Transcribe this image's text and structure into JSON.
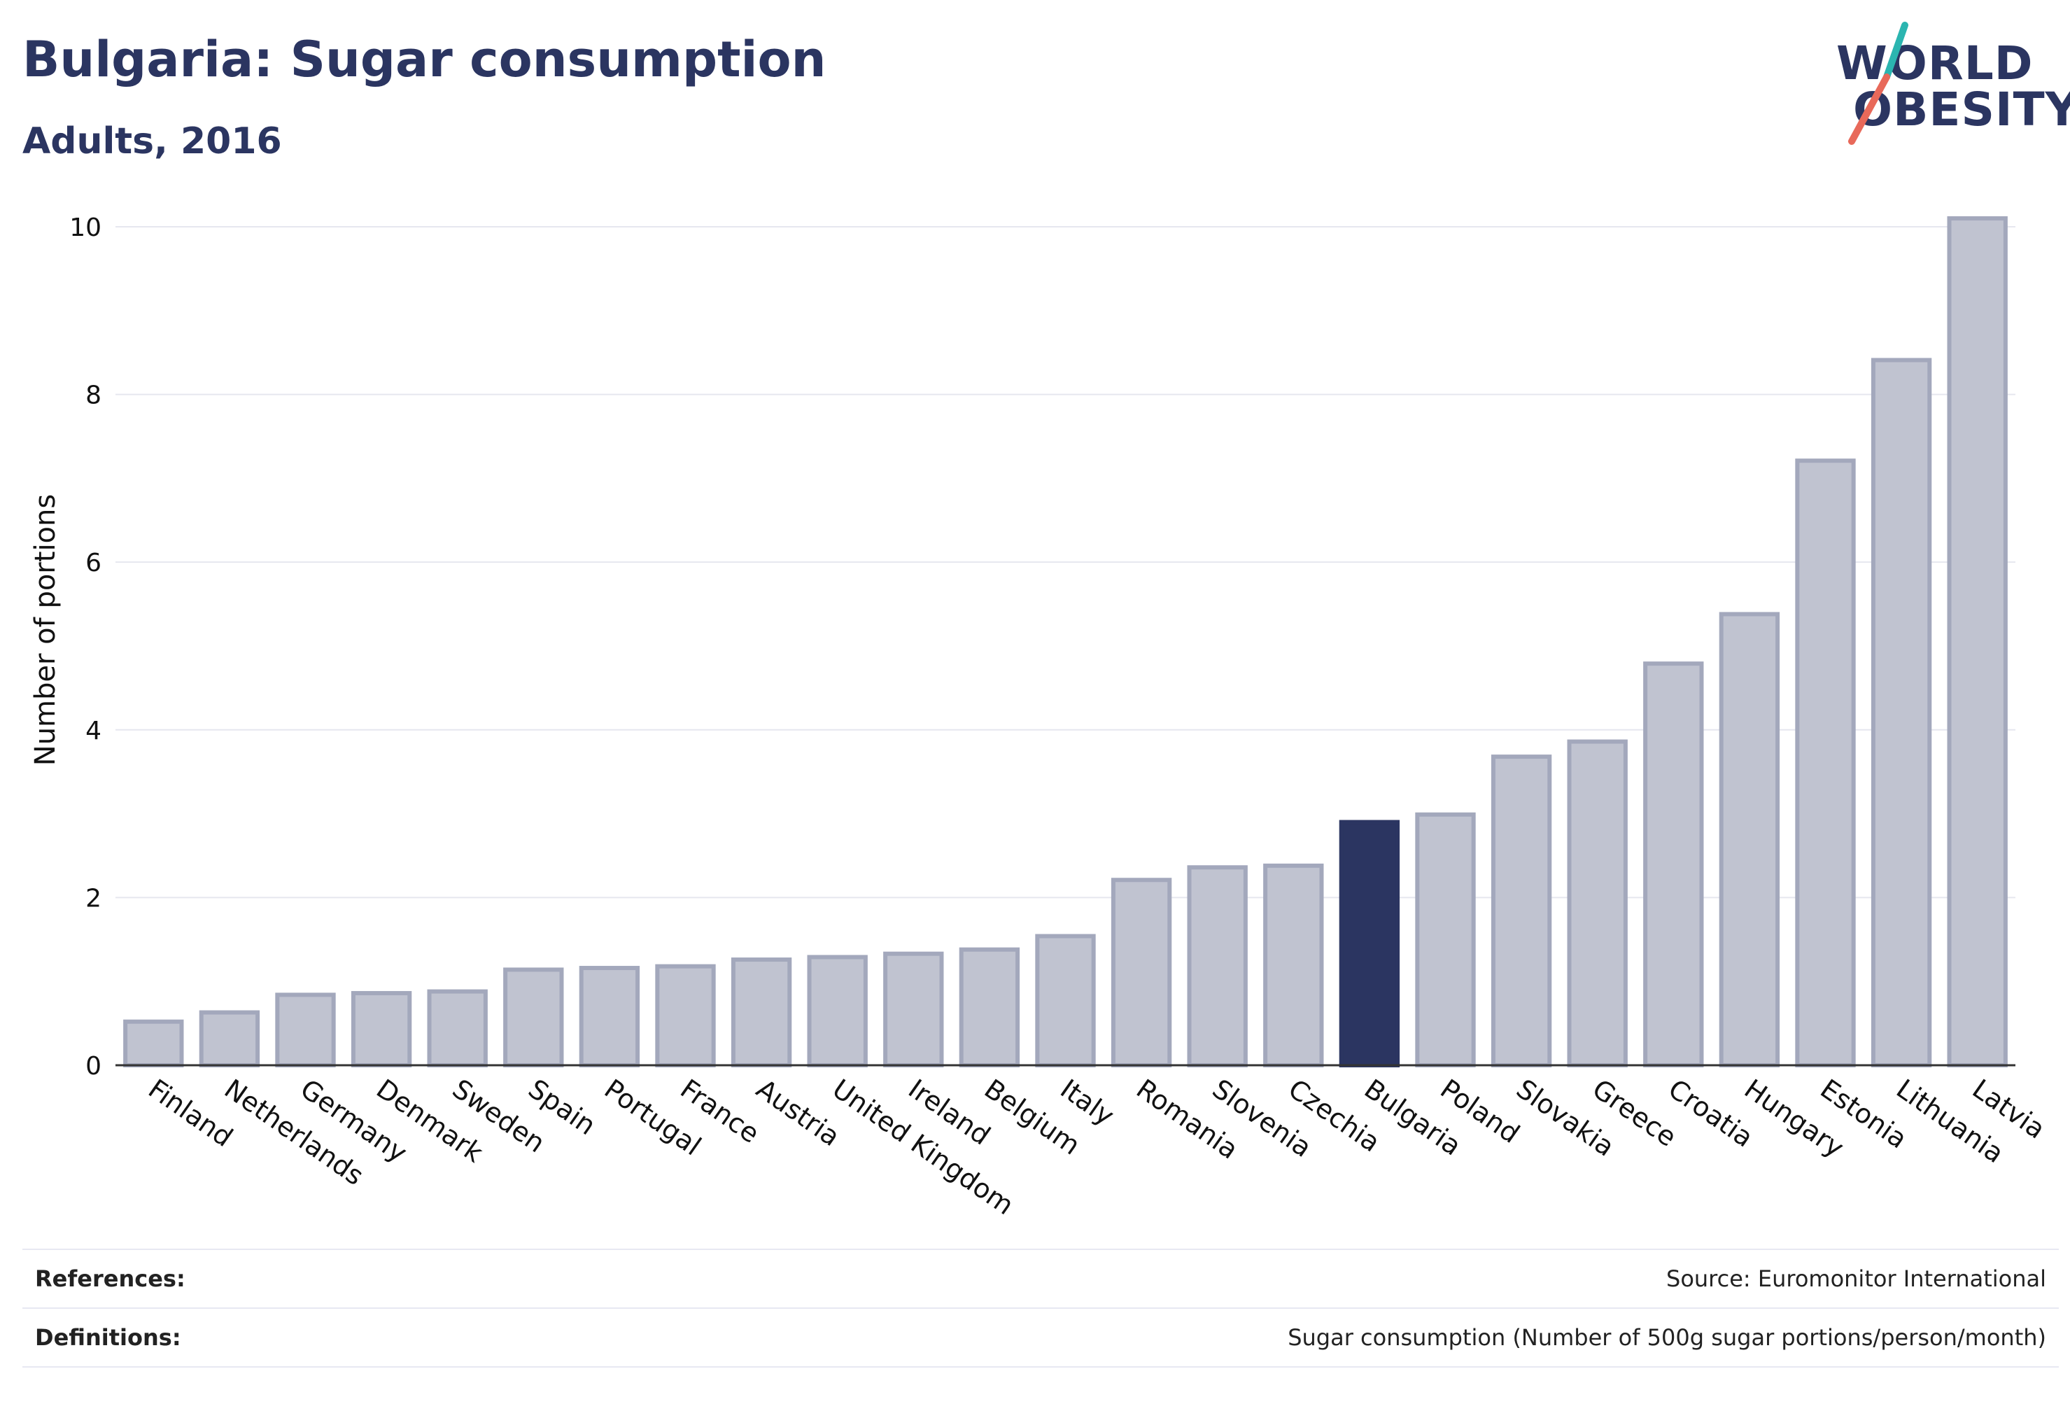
{
  "header": {
    "title": "Bulgaria: Sugar consumption",
    "subtitle": "Adults, 2016"
  },
  "logo": {
    "line1": "WORLD",
    "line2": "OBESITY",
    "colors": {
      "text": "#2b3561",
      "slash_top": "#2bb5b0",
      "slash_bottom": "#e8695a"
    }
  },
  "chart_data": {
    "type": "bar",
    "ylabel": "Number of portions",
    "ylim": [
      0,
      10.2
    ],
    "yticks": [
      0,
      2,
      4,
      6,
      8,
      10
    ],
    "grid": true,
    "highlight": "Bulgaria",
    "colors": {
      "bar": "#c0c3d0",
      "bar_edge": "#a3a8bc",
      "highlight": "#2b3561",
      "axis": "#333333",
      "grid": "#e6e7ef"
    },
    "categories": [
      "Finland",
      "Netherlands",
      "Germany",
      "Denmark",
      "Sweden",
      "Spain",
      "Portugal",
      "France",
      "Austria",
      "United Kingdom",
      "Ireland",
      "Belgium",
      "Italy",
      "Romania",
      "Slovenia",
      "Czechia",
      "Bulgaria",
      "Poland",
      "Slovakia",
      "Greece",
      "Croatia",
      "Hungary",
      "Estonia",
      "Lithuania",
      "Latvia"
    ],
    "values": [
      0.52,
      0.63,
      0.84,
      0.86,
      0.88,
      1.14,
      1.16,
      1.18,
      1.26,
      1.29,
      1.33,
      1.38,
      1.54,
      2.21,
      2.36,
      2.38,
      2.9,
      2.99,
      3.68,
      3.86,
      4.79,
      5.38,
      7.21,
      8.41,
      10.1
    ]
  },
  "footer": {
    "references_label": "References:",
    "references_value": "Source: Euromonitor International",
    "definitions_label": "Definitions:",
    "definitions_value": "Sugar consumption (Number of 500g sugar portions/person/month)"
  }
}
